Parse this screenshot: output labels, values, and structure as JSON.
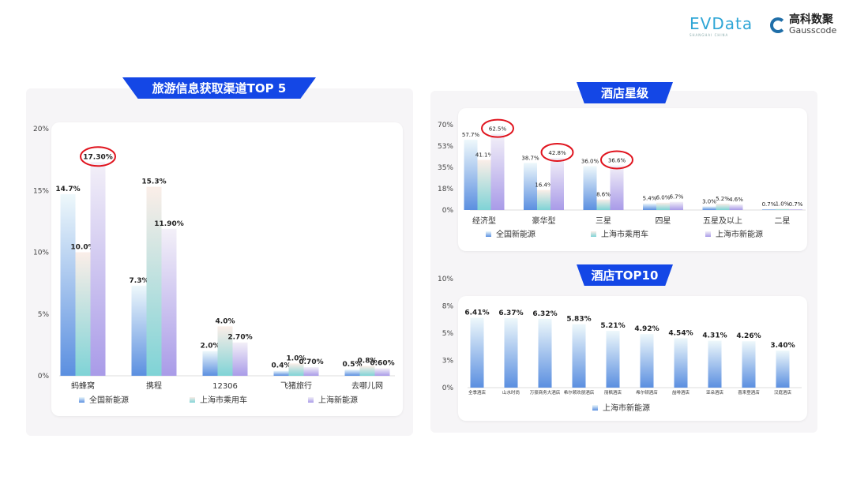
{
  "logos": {
    "evdata": "EVData",
    "evdata_sub": "SHANGHAI CHINA",
    "gauss_cn": "高科数聚",
    "gauss_en": "Gausscode"
  },
  "colors": {
    "series1": "#5b8fe0",
    "series2": "#7fd3d6",
    "series3": "#a99be8",
    "banner": "#1447e6",
    "highlight": "#e0141e"
  },
  "chart_data": [
    {
      "type": "bar",
      "title": "旅游信息获取渠道TOP 5",
      "categories": [
        "蚂蜂窝",
        "携程",
        "12306",
        "飞猪旅行",
        "去哪儿网"
      ],
      "yticks": [
        "0%",
        "5%",
        "10%",
        "15%",
        "20%"
      ],
      "ylim": [
        0,
        20
      ],
      "series": [
        {
          "name": "全国新能源",
          "values": [
            14.7,
            7.3,
            2.0,
            0.4,
            0.5
          ],
          "labels": [
            "14.7%",
            "7.3%",
            "2.0%",
            "0.4%",
            "0.5%"
          ]
        },
        {
          "name": "上海市乘用车",
          "values": [
            10.0,
            15.3,
            4.0,
            1.0,
            0.8
          ],
          "labels": [
            "10.0%",
            "15.3%",
            "4.0%",
            "1.0%",
            "0.8%"
          ]
        },
        {
          "name": "上海新能源",
          "values": [
            17.3,
            11.9,
            2.7,
            0.7,
            0.6
          ],
          "labels": [
            "17.30%",
            "11.90%",
            "2.70%",
            "0.70%",
            "0.60%"
          ]
        }
      ],
      "highlighted": [
        {
          "series": 2,
          "category": 0
        }
      ],
      "legend": "bottom"
    },
    {
      "type": "bar",
      "title": "酒店星级",
      "categories": [
        "经济型",
        "豪华型",
        "三星",
        "四星",
        "五星及以上",
        "二星"
      ],
      "yticks": [
        "0%",
        "18%",
        "35%",
        "53%",
        "70%"
      ],
      "ylim": [
        0,
        70
      ],
      "series": [
        {
          "name": "全国新能源",
          "values": [
            57.7,
            38.7,
            36.0,
            5.4,
            3.0,
            0.7
          ],
          "labels": [
            "57.7%",
            "38.7%",
            "36.0%",
            "5.4%",
            "3.0%",
            "0.7%"
          ]
        },
        {
          "name": "上海市乘用车",
          "values": [
            41.1,
            16.4,
            8.6,
            6.0,
            5.2,
            1.0
          ],
          "labels": [
            "41.1%",
            "16.4%",
            "8.6%",
            "6.0%",
            "5.2%",
            "1.0%"
          ]
        },
        {
          "name": "上海市新能源",
          "values": [
            62.5,
            42.8,
            36.6,
            6.7,
            4.6,
            0.7
          ],
          "labels": [
            "62.5%",
            "42.8%",
            "36.6%",
            "6.7%",
            "4.6%",
            "0.7%"
          ]
        }
      ],
      "highlighted": [
        {
          "series": 2,
          "category": 0
        },
        {
          "series": 2,
          "category": 1
        },
        {
          "series": 2,
          "category": 2
        }
      ],
      "legend": "bottom"
    },
    {
      "type": "bar",
      "title": "酒店TOP10",
      "categories": [
        "全季酒店",
        "山水时尚",
        "万豪商务大酒店",
        "希尔顿欢朋酒店",
        "丽枫酒店",
        "希尔顿酒店",
        "喆啡酒店",
        "亚朵酒店",
        "喜来登酒店",
        "汉庭酒店"
      ],
      "yticks": [
        "0%",
        "3%",
        "5%",
        "8%",
        "10%"
      ],
      "ylim": [
        0,
        10
      ],
      "series": [
        {
          "name": "上海市新能源",
          "values": [
            6.41,
            6.37,
            6.32,
            5.83,
            5.21,
            4.92,
            4.54,
            4.31,
            4.26,
            3.4
          ],
          "labels": [
            "6.41%",
            "6.37%",
            "6.32%",
            "5.83%",
            "5.21%",
            "4.92%",
            "4.54%",
            "4.31%",
            "4.26%",
            "3.40%"
          ]
        }
      ],
      "legend": "bottom"
    }
  ]
}
